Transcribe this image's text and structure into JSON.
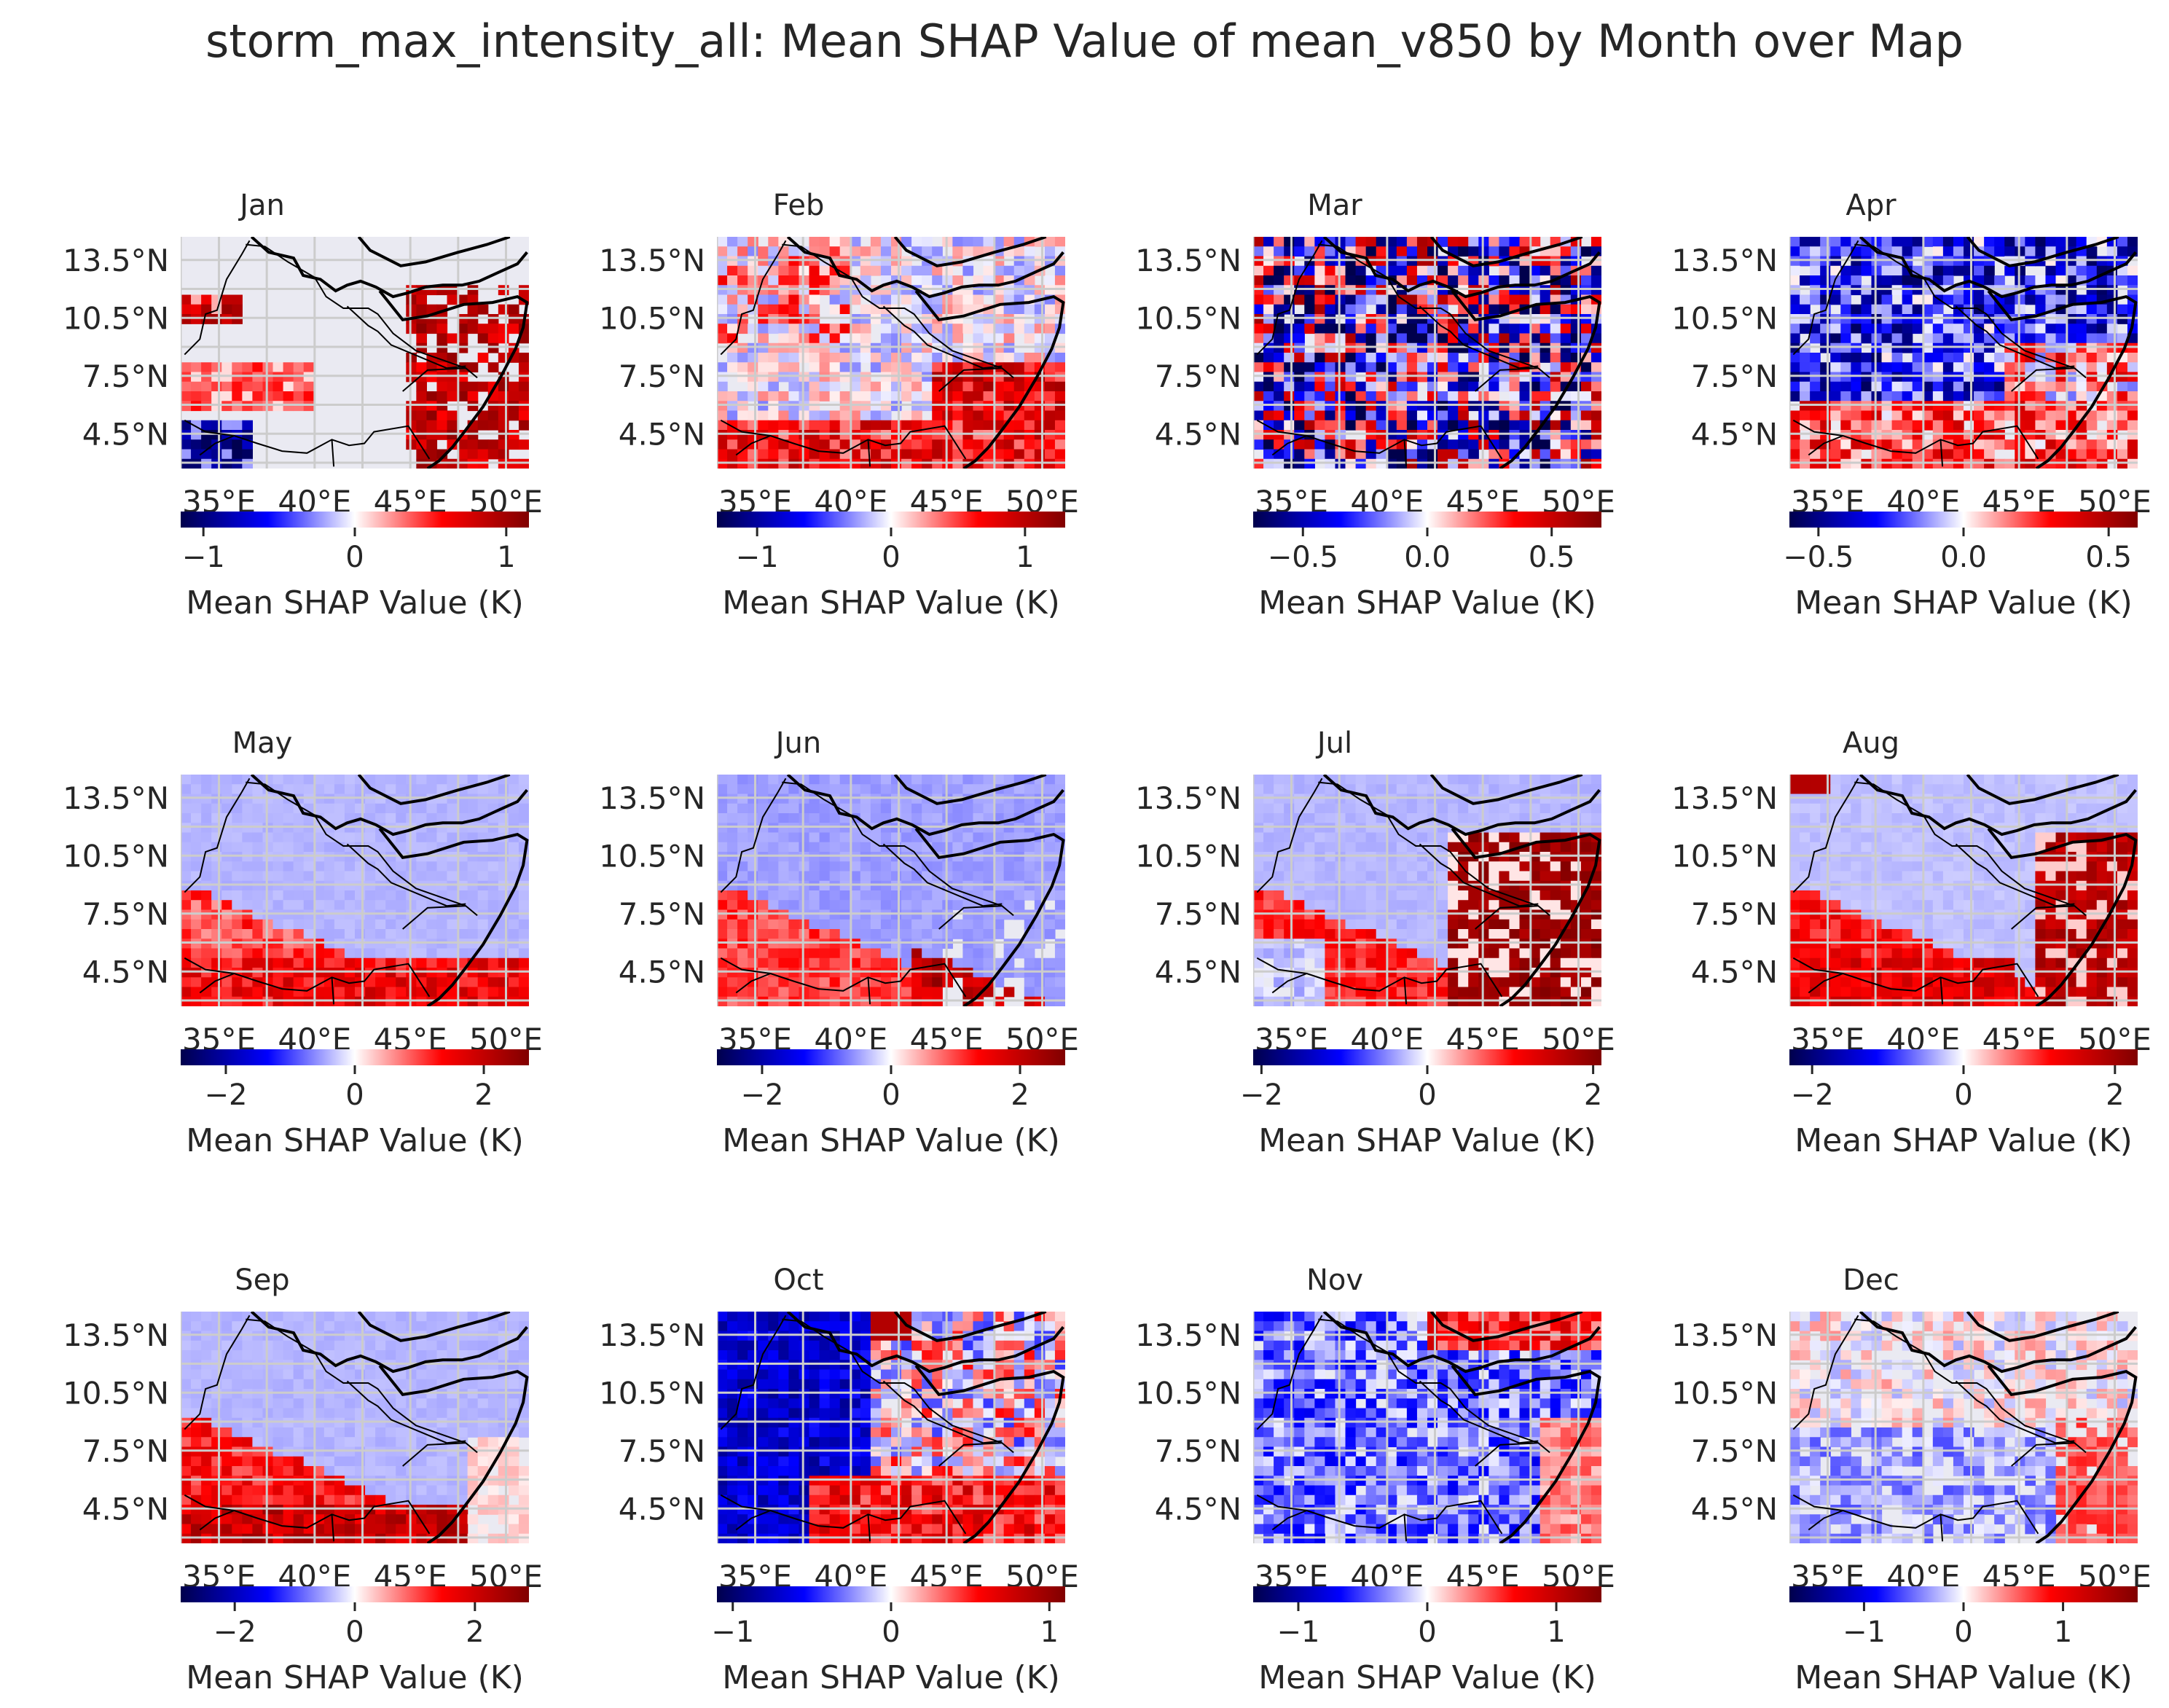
{
  "title": "storm_max_intensity_all: Mean SHAP Value of mean_v850 by Month over Map",
  "colormap": [
    "#00004c",
    "#0000ff",
    "#ffffff",
    "#ff0000",
    "#800000"
  ],
  "map_background": "#eaeaf2",
  "grid_color": "#cccccc",
  "chart_data": [
    {
      "type": "heatmap",
      "title": "Jan",
      "lon_ticks": [
        "35°E",
        "40°E",
        "45°E",
        "50°E"
      ],
      "lat_ticks": [
        "13.5°N",
        "10.5°N",
        "7.5°N",
        "4.5°N"
      ],
      "colorbar_label": "Mean SHAP Value (K)",
      "colorbar_ticks": [
        -1,
        0,
        1
      ],
      "colorbar_tick_labels": [
        "−1",
        "0",
        "1"
      ],
      "vmin": -1.15,
      "vmax": 1.15,
      "pattern": "jan"
    },
    {
      "type": "heatmap",
      "title": "Feb",
      "lon_ticks": [
        "35°E",
        "40°E",
        "45°E",
        "50°E"
      ],
      "lat_ticks": [
        "13.5°N",
        "10.5°N",
        "7.5°N",
        "4.5°N"
      ],
      "colorbar_label": "Mean SHAP Value (K)",
      "colorbar_ticks": [
        -1,
        0,
        1
      ],
      "colorbar_tick_labels": [
        "−1",
        "0",
        "1"
      ],
      "vmin": -1.3,
      "vmax": 1.3,
      "pattern": "feb"
    },
    {
      "type": "heatmap",
      "title": "Mar",
      "lon_ticks": [
        "35°E",
        "40°E",
        "45°E",
        "50°E"
      ],
      "lat_ticks": [
        "13.5°N",
        "10.5°N",
        "7.5°N",
        "4.5°N"
      ],
      "colorbar_label": "Mean SHAP Value (K)",
      "colorbar_ticks": [
        -0.5,
        0.0,
        0.5
      ],
      "colorbar_tick_labels": [
        "−0.5",
        "0.0",
        "0.5"
      ],
      "vmin": -0.7,
      "vmax": 0.7,
      "pattern": "mar"
    },
    {
      "type": "heatmap",
      "title": "Apr",
      "lon_ticks": [
        "35°E",
        "40°E",
        "45°E",
        "50°E"
      ],
      "lat_ticks": [
        "13.5°N",
        "10.5°N",
        "7.5°N",
        "4.5°N"
      ],
      "colorbar_label": "Mean SHAP Value (K)",
      "colorbar_ticks": [
        -0.5,
        0.0,
        0.5
      ],
      "colorbar_tick_labels": [
        "−0.5",
        "0.0",
        "0.5"
      ],
      "vmin": -0.6,
      "vmax": 0.6,
      "pattern": "apr"
    },
    {
      "type": "heatmap",
      "title": "May",
      "lon_ticks": [
        "35°E",
        "40°E",
        "45°E",
        "50°E"
      ],
      "lat_ticks": [
        "13.5°N",
        "10.5°N",
        "7.5°N",
        "4.5°N"
      ],
      "colorbar_label": "Mean SHAP Value (K)",
      "colorbar_ticks": [
        -2,
        0,
        2
      ],
      "colorbar_tick_labels": [
        "−2",
        "0",
        "2"
      ],
      "vmin": -2.7,
      "vmax": 2.7,
      "pattern": "may"
    },
    {
      "type": "heatmap",
      "title": "Jun",
      "lon_ticks": [
        "35°E",
        "40°E",
        "45°E",
        "50°E"
      ],
      "lat_ticks": [
        "13.5°N",
        "10.5°N",
        "7.5°N",
        "4.5°N"
      ],
      "colorbar_label": "Mean SHAP Value (K)",
      "colorbar_ticks": [
        -2,
        0,
        2
      ],
      "colorbar_tick_labels": [
        "−2",
        "0",
        "2"
      ],
      "vmin": -2.7,
      "vmax": 2.7,
      "pattern": "jun"
    },
    {
      "type": "heatmap",
      "title": "Jul",
      "lon_ticks": [
        "35°E",
        "40°E",
        "45°E",
        "50°E"
      ],
      "lat_ticks": [
        "13.5°N",
        "10.5°N",
        "7.5°N",
        "4.5°N"
      ],
      "colorbar_label": "Mean SHAP Value (K)",
      "colorbar_ticks": [
        -2,
        0,
        2
      ],
      "colorbar_tick_labels": [
        "−2",
        "0",
        "2"
      ],
      "vmin": -2.1,
      "vmax": 2.1,
      "pattern": "jul"
    },
    {
      "type": "heatmap",
      "title": "Aug",
      "lon_ticks": [
        "35°E",
        "40°E",
        "45°E",
        "50°E"
      ],
      "lat_ticks": [
        "13.5°N",
        "10.5°N",
        "7.5°N",
        "4.5°N"
      ],
      "colorbar_label": "Mean SHAP Value (K)",
      "colorbar_ticks": [
        -2,
        0,
        2
      ],
      "colorbar_tick_labels": [
        "−2",
        "0",
        "2"
      ],
      "vmin": -2.3,
      "vmax": 2.3,
      "pattern": "aug"
    },
    {
      "type": "heatmap",
      "title": "Sep",
      "lon_ticks": [
        "35°E",
        "40°E",
        "45°E",
        "50°E"
      ],
      "lat_ticks": [
        "13.5°N",
        "10.5°N",
        "7.5°N",
        "4.5°N"
      ],
      "colorbar_label": "Mean SHAP Value (K)",
      "colorbar_ticks": [
        -2,
        0,
        2
      ],
      "colorbar_tick_labels": [
        "−2",
        "0",
        "2"
      ],
      "vmin": -2.9,
      "vmax": 2.9,
      "pattern": "sep"
    },
    {
      "type": "heatmap",
      "title": "Oct",
      "lon_ticks": [
        "35°E",
        "40°E",
        "45°E",
        "50°E"
      ],
      "lat_ticks": [
        "13.5°N",
        "10.5°N",
        "7.5°N",
        "4.5°N"
      ],
      "colorbar_label": "Mean SHAP Value (K)",
      "colorbar_ticks": [
        -1,
        0,
        1
      ],
      "colorbar_tick_labels": [
        "−1",
        "0",
        "1"
      ],
      "vmin": -1.1,
      "vmax": 1.1,
      "pattern": "oct"
    },
    {
      "type": "heatmap",
      "title": "Nov",
      "lon_ticks": [
        "35°E",
        "40°E",
        "45°E",
        "50°E"
      ],
      "lat_ticks": [
        "13.5°N",
        "10.5°N",
        "7.5°N",
        "4.5°N"
      ],
      "colorbar_label": "Mean SHAP Value (K)",
      "colorbar_ticks": [
        -1,
        0,
        1
      ],
      "colorbar_tick_labels": [
        "−1",
        "0",
        "1"
      ],
      "vmin": -1.35,
      "vmax": 1.35,
      "pattern": "nov"
    },
    {
      "type": "heatmap",
      "title": "Dec",
      "lon_ticks": [
        "35°E",
        "40°E",
        "45°E",
        "50°E"
      ],
      "lat_ticks": [
        "13.5°N",
        "10.5°N",
        "7.5°N",
        "4.5°N"
      ],
      "colorbar_label": "Mean SHAP Value (K)",
      "colorbar_ticks": [
        -1,
        0,
        1
      ],
      "colorbar_tick_labels": [
        "−1",
        "0",
        "1"
      ],
      "vmin": -1.75,
      "vmax": 1.75,
      "pattern": "dec"
    }
  ]
}
